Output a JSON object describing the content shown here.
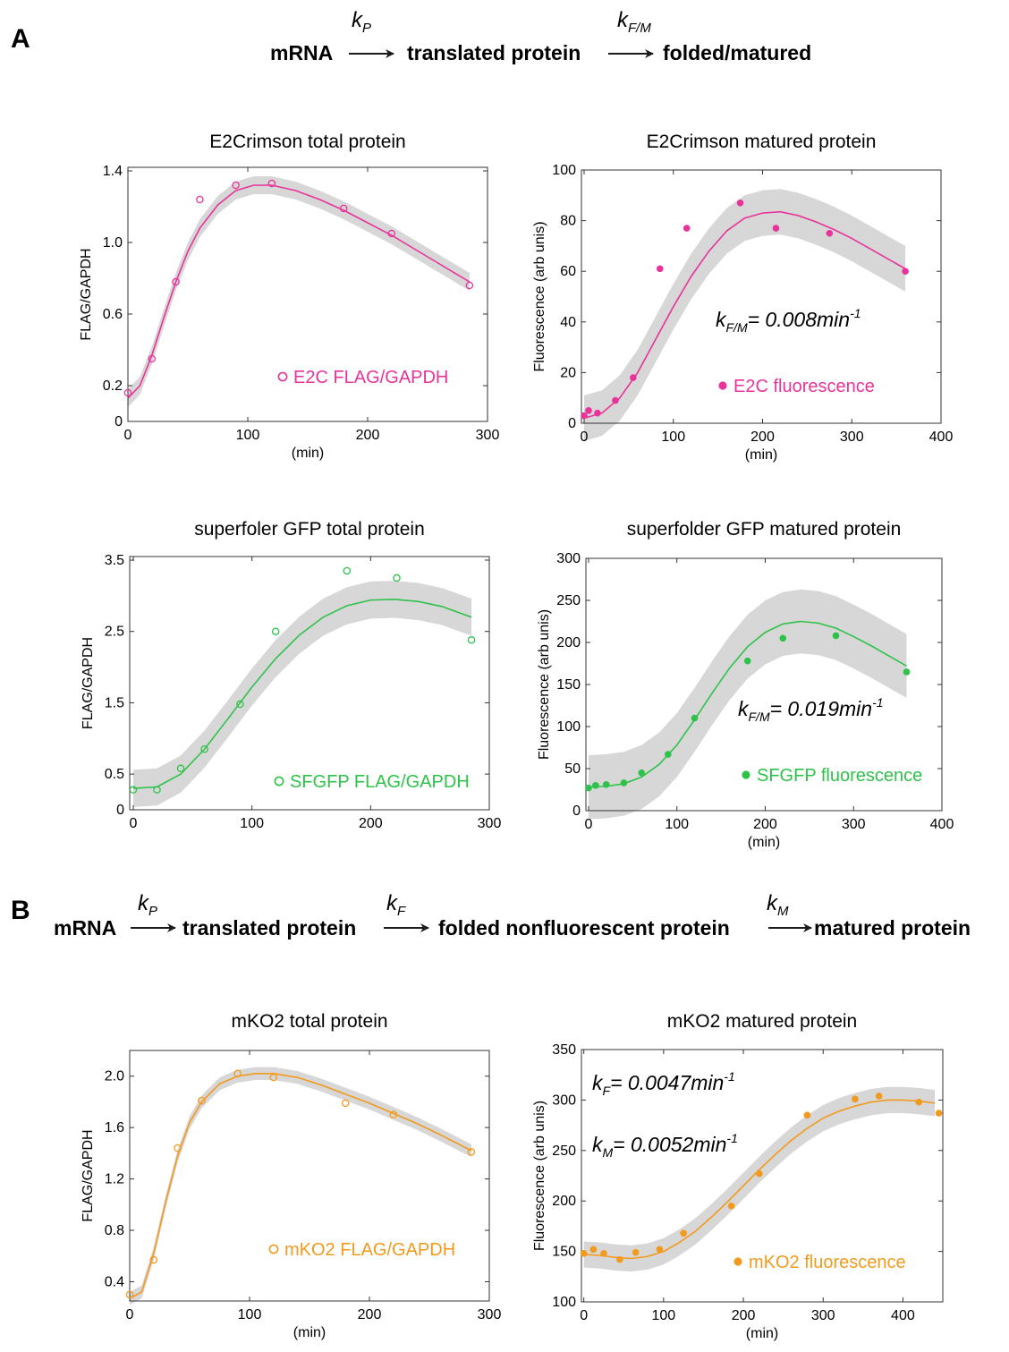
{
  "panels": {
    "A": {
      "letter": "A",
      "scheme": {
        "nodes": [
          "mRNA",
          "translated protein",
          "folded/matured"
        ],
        "rates": [
          {
            "k": "k",
            "sub": "P"
          },
          {
            "k": "k",
            "sub": "F/M"
          }
        ]
      }
    },
    "B": {
      "letter": "B",
      "scheme": {
        "nodes": [
          "mRNA",
          "translated protein",
          "folded nonfluorescent protein",
          "matured protein"
        ],
        "rates": [
          {
            "k": "k",
            "sub": "P"
          },
          {
            "k": "k",
            "sub": "F"
          },
          {
            "k": "k",
            "sub": "M"
          }
        ]
      }
    }
  },
  "colors": {
    "magenta": "#e8339a",
    "green": "#2ec24a",
    "orange": "#f29a1e",
    "band": "#d7d7d7",
    "axis": "#333333"
  },
  "chart_data": [
    {
      "id": "e2c-total",
      "type": "scatter",
      "title": "E2Crimson total protein",
      "xlabel": "(min)",
      "ylabel": "FLAG/GAPDH",
      "xlim": [
        0,
        300
      ],
      "ylim": [
        0,
        1.42
      ],
      "xticks": [
        0,
        100,
        200,
        300
      ],
      "yticks": [
        0,
        0.2,
        0.6,
        1.0,
        1.4
      ],
      "ytick_labels": [
        "0",
        "0.2",
        "0.6",
        "1.0",
        "1.4"
      ],
      "color": "magenta",
      "marker": "open",
      "legend": "E2C FLAG/GAPDH",
      "legend_position": "bottom-right",
      "points": {
        "x": [
          0,
          20,
          40,
          60,
          90,
          120,
          180,
          220,
          285
        ],
        "y": [
          0.16,
          0.35,
          0.78,
          1.24,
          1.32,
          1.33,
          1.19,
          1.05,
          0.76
        ]
      },
      "fit": {
        "x": [
          0,
          10,
          20,
          30,
          40,
          50,
          60,
          75,
          90,
          105,
          120,
          140,
          160,
          180,
          200,
          220,
          240,
          260,
          285
        ],
        "y": [
          0.13,
          0.2,
          0.37,
          0.58,
          0.78,
          0.95,
          1.08,
          1.21,
          1.29,
          1.32,
          1.32,
          1.29,
          1.24,
          1.18,
          1.11,
          1.04,
          0.96,
          0.88,
          0.78
        ]
      },
      "band": 0.05
    },
    {
      "id": "e2c-matured",
      "type": "scatter",
      "title": "E2Crimson matured protein",
      "xlabel": "(min)",
      "ylabel": "Fluorescence (arb unis)",
      "xlim": [
        -3,
        400
      ],
      "ylim": [
        0,
        100
      ],
      "xticks": [
        0,
        100,
        200,
        300,
        400
      ],
      "yticks": [
        0,
        20,
        40,
        60,
        80,
        100
      ],
      "color": "magenta",
      "marker": "filled",
      "legend": "E2C fluorescence",
      "legend_position": "bottom-right",
      "annotation": {
        "k": "k",
        "sub": "F/M",
        "text": "= 0.008min",
        "sup": "-1"
      },
      "points": {
        "x": [
          0,
          5,
          15,
          35,
          55,
          85,
          115,
          175,
          215,
          275,
          360
        ],
        "y": [
          3,
          5,
          4,
          9,
          18,
          61,
          77,
          87,
          77,
          75,
          60
        ]
      },
      "fit": {
        "x": [
          0,
          20,
          40,
          60,
          80,
          100,
          120,
          140,
          160,
          180,
          200,
          220,
          240,
          260,
          280,
          300,
          320,
          340,
          360
        ],
        "y": [
          2,
          4,
          10,
          20,
          33,
          46,
          58,
          68,
          76,
          81,
          83,
          83.5,
          82,
          79.5,
          76.5,
          73,
          69,
          65,
          61
        ]
      },
      "band": 9
    },
    {
      "id": "sfgfp-total",
      "type": "scatter",
      "title": "superfoler GFP total protein",
      "xlabel": "",
      "ylabel": "FLAG/GAPDH",
      "xlim": [
        -3,
        300
      ],
      "ylim": [
        0,
        3.55
      ],
      "xticks": [
        0,
        100,
        200,
        300
      ],
      "yticks": [
        0,
        0.5,
        1.5,
        2.5,
        3.5
      ],
      "ytick_labels": [
        "0",
        "0.5",
        "1.5",
        "2.5",
        "3.5"
      ],
      "color": "green",
      "marker": "open",
      "legend": "SFGFP FLAG/GAPDH",
      "legend_position": "bottom-right",
      "points": {
        "x": [
          0,
          20,
          40,
          60,
          90,
          120,
          180,
          222,
          285
        ],
        "y": [
          0.28,
          0.28,
          0.58,
          0.85,
          1.48,
          2.5,
          3.35,
          3.25,
          2.38
        ]
      },
      "fit": {
        "x": [
          0,
          20,
          40,
          60,
          80,
          100,
          120,
          140,
          160,
          180,
          200,
          220,
          240,
          260,
          285
        ],
        "y": [
          0.3,
          0.32,
          0.5,
          0.85,
          1.28,
          1.72,
          2.12,
          2.45,
          2.7,
          2.86,
          2.94,
          2.95,
          2.92,
          2.85,
          2.7
        ]
      },
      "band": 0.26
    },
    {
      "id": "sfgfp-matured",
      "type": "scatter",
      "title": "superfolder GFP matured protein",
      "xlabel": "(min)",
      "ylabel": "Fluorescence (arb unis)",
      "xlim": [
        -3,
        400
      ],
      "ylim": [
        0,
        300
      ],
      "xticks": [
        0,
        100,
        200,
        300,
        400
      ],
      "yticks": [
        0,
        50,
        100,
        150,
        200,
        250,
        300
      ],
      "color": "green",
      "marker": "filled",
      "legend": "SFGFP fluorescence",
      "legend_position": "bottom-right",
      "annotation": {
        "k": "k",
        "sub": "F/M",
        "text": "= 0.019min",
        "sup": "-1"
      },
      "points": {
        "x": [
          0,
          8,
          20,
          40,
          60,
          90,
          120,
          180,
          220,
          280,
          360
        ],
        "y": [
          27,
          30,
          31,
          33,
          45,
          67,
          110,
          178,
          205,
          208,
          165
        ]
      },
      "fit": {
        "x": [
          0,
          20,
          40,
          60,
          80,
          100,
          120,
          140,
          160,
          180,
          200,
          220,
          240,
          260,
          280,
          300,
          320,
          340,
          360
        ],
        "y": [
          28,
          29,
          32,
          40,
          55,
          78,
          108,
          140,
          170,
          195,
          212,
          222,
          225,
          223,
          217,
          207,
          196,
          184,
          172
        ]
      },
      "band": 38
    },
    {
      "id": "mko2-total",
      "type": "scatter",
      "title": "mKO2 total protein",
      "xlabel": "(min)",
      "ylabel": "FLAG/GAPDH",
      "xlim": [
        0,
        300
      ],
      "ylim": [
        0.25,
        2.2
      ],
      "xticks": [
        0,
        100,
        200,
        300
      ],
      "yticks": [
        0.4,
        0.8,
        1.2,
        1.6,
        2.0
      ],
      "ytick_labels": [
        "0.4",
        "0.8",
        "1.2",
        "1.6",
        "2.0"
      ],
      "color": "orange",
      "marker": "open",
      "legend": "mKO2 FLAG/GAPDH",
      "legend_position": "bottom-right",
      "points": {
        "x": [
          0,
          20,
          40,
          60,
          90,
          120,
          180,
          220,
          285
        ],
        "y": [
          0.3,
          0.57,
          1.44,
          1.81,
          2.02,
          1.99,
          1.79,
          1.7,
          1.41
        ]
      },
      "fit": {
        "x": [
          0,
          10,
          20,
          30,
          40,
          50,
          60,
          75,
          90,
          105,
          120,
          140,
          160,
          180,
          200,
          220,
          240,
          260,
          285
        ],
        "y": [
          0.27,
          0.32,
          0.62,
          1.02,
          1.38,
          1.64,
          1.8,
          1.94,
          2.0,
          2.02,
          2.02,
          1.99,
          1.93,
          1.86,
          1.79,
          1.71,
          1.63,
          1.54,
          1.42
        ]
      },
      "band": 0.05
    },
    {
      "id": "mko2-matured",
      "type": "scatter",
      "title": "mKO2 matured protein",
      "xlabel": "(min)",
      "ylabel": "Fluorescence (arb unis)",
      "xlim": [
        -3,
        450
      ],
      "ylim": [
        100,
        350
      ],
      "xticks": [
        0,
        100,
        200,
        300,
        400
      ],
      "yticks": [
        100,
        150,
        200,
        250,
        300,
        350
      ],
      "color": "orange",
      "marker": "filled",
      "legend": "mKO2 fluorescence",
      "legend_position": "bottom-right",
      "annotations": [
        {
          "k": "k",
          "sub": "F",
          "text": "= 0.0047min",
          "sup": "-1"
        },
        {
          "k": "k",
          "sub": "M",
          "text": "= 0.0052min",
          "sup": "-1"
        }
      ],
      "points": {
        "x": [
          0,
          12,
          25,
          45,
          65,
          95,
          125,
          185,
          220,
          280,
          340,
          370,
          420,
          445
        ],
        "y": [
          148,
          152,
          148,
          142,
          149,
          152,
          168,
          195,
          227,
          285,
          301,
          304,
          298,
          287
        ]
      },
      "fit": {
        "x": [
          0,
          20,
          40,
          60,
          80,
          100,
          120,
          140,
          160,
          180,
          200,
          220,
          240,
          260,
          280,
          300,
          320,
          340,
          360,
          380,
          400,
          420,
          440
        ],
        "y": [
          147,
          146,
          144,
          143,
          145,
          150,
          159,
          170,
          184,
          199,
          215,
          231,
          246,
          260,
          272,
          282,
          289,
          294,
          298,
          300,
          300,
          299,
          297
        ]
      },
      "band": 13
    }
  ]
}
